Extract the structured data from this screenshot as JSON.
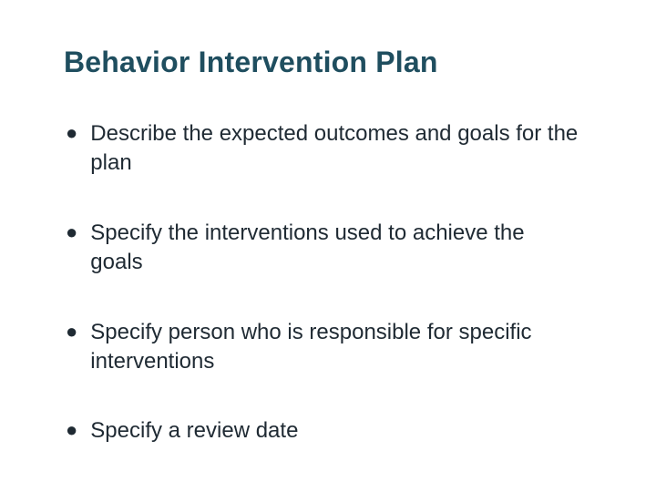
{
  "slide": {
    "title": "Behavior Intervention Plan",
    "title_color": "#1f4e5f",
    "title_fontsize": 32,
    "title_fontweight": "bold",
    "text_color": "#1f2a33",
    "bullet_fontsize": 24,
    "background_color": "#ffffff",
    "bullets": [
      "Describe the expected outcomes and goals for the plan",
      "Specify the interventions used to achieve the goals",
      "Specify person who is responsible for specific interventions",
      "Specify a review date"
    ],
    "bullet_glyph": "●"
  }
}
